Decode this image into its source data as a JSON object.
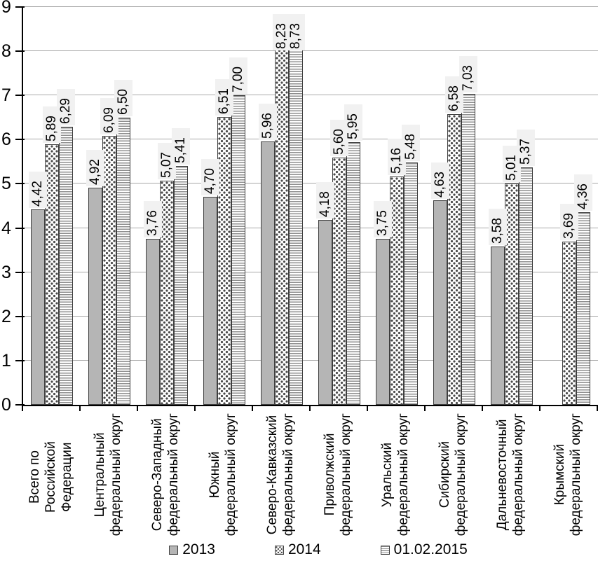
{
  "figure": {
    "background": "#ffffff"
  },
  "y_axis": {
    "min": 0,
    "max": 9,
    "tick_labels": [
      "0",
      "1",
      "2",
      "3",
      "4",
      "5",
      "6",
      "7",
      "8",
      "9"
    ]
  },
  "legend": {
    "position": "bottom",
    "items": [
      {
        "label": "2013",
        "pattern": "solid"
      },
      {
        "label": "2014",
        "pattern": "dots"
      },
      {
        "label": "01.02.2015",
        "pattern": "hlines"
      }
    ]
  },
  "chart_data": {
    "type": "bar",
    "title": "",
    "xlabel": "",
    "ylabel": "",
    "ylim": [
      0,
      9
    ],
    "grid": true,
    "legend_position": "bottom",
    "decimal_separator": ",",
    "value_labels_rotated": true,
    "categories": [
      "Всего по Российской Федерации",
      "Центральный федеральный округ",
      "Северо-Западный федеральный округ",
      "Южный федеральный округ",
      "Северо-Кавказский федеральный округ",
      "Приволжский федеральный округ",
      "Уральский федеральный округ",
      "Сибирский федеральный округ",
      "Дальневосточный федеральный округ",
      "Крымский федеральный округ"
    ],
    "category_lines": [
      [
        "Всего по Российской",
        "Федерации"
      ],
      [
        "Центральный",
        "федеральный округ"
      ],
      [
        "Северо-Западный",
        "федеральный округ"
      ],
      [
        "Южный",
        "федеральный округ"
      ],
      [
        "Северо-Кавказский",
        "федеральный округ"
      ],
      [
        "Приволжский",
        "федеральный округ"
      ],
      [
        "Уральский",
        "федеральный округ"
      ],
      [
        "Сибирский",
        "федеральный округ"
      ],
      [
        "Дальневосточный",
        "федеральный округ"
      ],
      [
        "Крымский",
        "федеральный округ"
      ]
    ],
    "series": [
      {
        "name": "2013",
        "pattern": "solid",
        "values": [
          4.42,
          4.92,
          3.76,
          4.7,
          5.96,
          4.18,
          3.75,
          4.63,
          3.58,
          null
        ],
        "labels": [
          "4,42",
          "4,92",
          "3,76",
          "4,70",
          "5,96",
          "4,18",
          "3,75",
          "4,63",
          "3,58",
          ""
        ]
      },
      {
        "name": "2014",
        "pattern": "dots",
        "values": [
          5.89,
          6.09,
          5.07,
          6.51,
          8.23,
          5.6,
          5.16,
          6.58,
          5.01,
          3.69
        ],
        "labels": [
          "5,89",
          "6,09",
          "5,07",
          "6,51",
          "8,23",
          "5,60",
          "5,16",
          "6,58",
          "5,01",
          "3,69"
        ]
      },
      {
        "name": "01.02.2015",
        "pattern": "hlines",
        "values": [
          6.29,
          6.5,
          5.41,
          7.0,
          8.73,
          5.95,
          5.48,
          7.03,
          5.37,
          4.36
        ],
        "labels": [
          "6,29",
          "6,50",
          "5,41",
          "7,00",
          "8,73",
          "5,95",
          "5,48",
          "7,03",
          "5,37",
          "4,36"
        ]
      }
    ]
  },
  "colors": {
    "bar_solid_fill": "#b5b5b5",
    "bar_border": "#3f3f3f",
    "dot_pattern": "#4a4a4a",
    "line_pattern": "#8f8f8f",
    "gridline": "#a8a8a8",
    "axis": "#000000",
    "value_label_bg": "#f1f1f1",
    "text": "#000000"
  }
}
